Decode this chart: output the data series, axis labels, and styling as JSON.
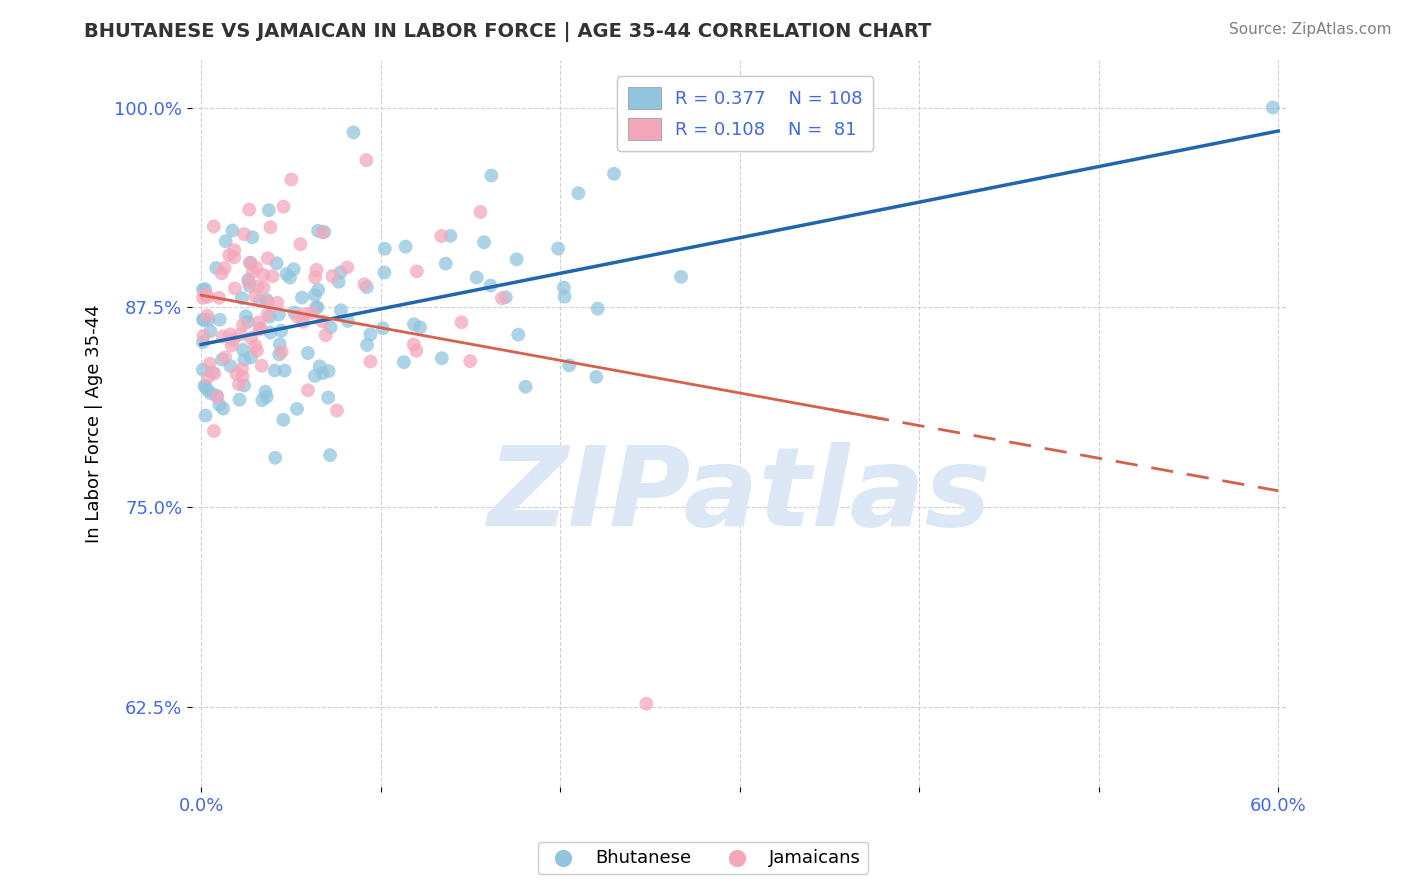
{
  "title": "BHUTANESE VS JAMAICAN IN LABOR FORCE | AGE 35-44 CORRELATION CHART",
  "source_text": "Source: ZipAtlas.com",
  "ylabel": "In Labor Force | Age 35-44",
  "xlim": [
    -0.005,
    0.605
  ],
  "ylim": [
    0.575,
    1.03
  ],
  "xticks": [
    0.0,
    0.1,
    0.2,
    0.3,
    0.4,
    0.5,
    0.6
  ],
  "xticklabels": [
    "0.0%",
    "",
    "",
    "",
    "",
    "",
    "60.0%"
  ],
  "yticks": [
    0.625,
    0.75,
    0.875,
    1.0
  ],
  "yticklabels": [
    "62.5%",
    "75.0%",
    "87.5%",
    "100.0%"
  ],
  "blue_color": "#92c5de",
  "pink_color": "#f4a7bb",
  "blue_line_color": "#2166ac",
  "pink_line_color": "#d6604d",
  "grid_color": "#cccccc",
  "title_color": "#333333",
  "tick_label_color": "#4169E1",
  "watermark": "ZIPatlas",
  "watermark_color": "#dce8f5",
  "blue_R": 0.377,
  "blue_N": 108,
  "pink_R": 0.108,
  "pink_N": 81,
  "blue_seed": 12,
  "pink_seed": 7
}
